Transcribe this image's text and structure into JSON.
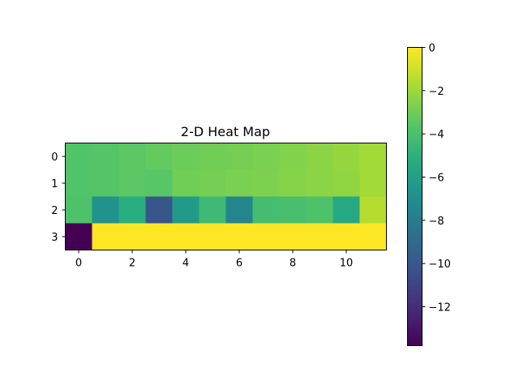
{
  "chart_data": {
    "type": "heatmap",
    "title": "2-D Heat Map",
    "xlabel": "",
    "ylabel": "",
    "x_ticks": [
      0,
      2,
      4,
      6,
      8,
      10
    ],
    "y_ticks": [
      0,
      1,
      2,
      3
    ],
    "colormap": "viridis",
    "colorbar": {
      "min": -13.8,
      "max": 0,
      "ticks": [
        0,
        -2,
        -4,
        -6,
        -8,
        -10,
        -12
      ]
    },
    "matrix": [
      [
        -3.8,
        -3.7,
        -3.5,
        -3.3,
        -3.1,
        -3.0,
        -2.9,
        -2.8,
        -2.6,
        -2.4,
        -2.2,
        -1.9
      ],
      [
        -3.8,
        -3.7,
        -3.5,
        -3.6,
        -3.0,
        -2.9,
        -2.8,
        -2.7,
        -2.5,
        -2.4,
        -2.3,
        -1.9
      ],
      [
        -3.9,
        -6.8,
        -5.1,
        -10.1,
        -6.3,
        -4.4,
        -7.5,
        -4.2,
        -4.1,
        -3.9,
        -5.5,
        -1.5
      ],
      [
        -13.8,
        0,
        0,
        0,
        0,
        0,
        0,
        0,
        0,
        0,
        0,
        0
      ]
    ]
  }
}
